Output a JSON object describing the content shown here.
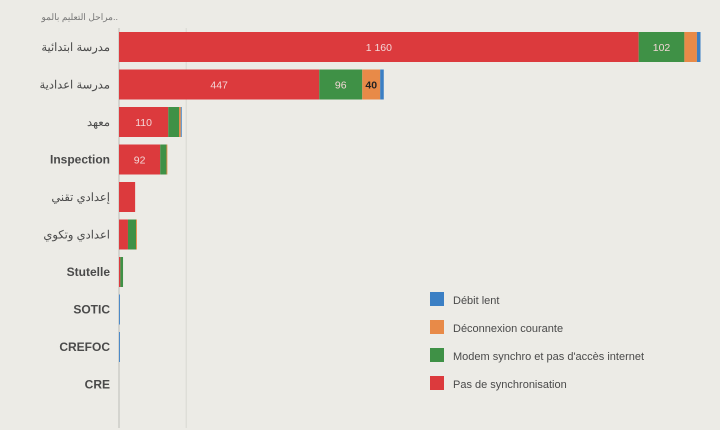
{
  "chart_data": {
    "type": "bar",
    "orientation": "horizontal",
    "stacked": true,
    "title": "مراحل التعليم بالمو..",
    "categories": [
      "مدرسة ابتدائية",
      "مدرسة اعدادية",
      "معهد",
      "Inspection",
      "إعدادي تقني",
      "اعدادي وتكوي",
      "Stutelle",
      "SOTIC",
      "CREFOC",
      "CRE"
    ],
    "series": [
      {
        "name": "Pas de synchronisation",
        "color": "#dc3a3d",
        "values": [
          1160,
          447,
          110,
          92,
          36,
          20,
          3,
          0,
          0,
          0
        ],
        "labels": [
          "1 160",
          "447",
          "110",
          "92",
          "",
          "",
          "",
          "",
          "",
          ""
        ]
      },
      {
        "name": "Modem synchro et pas d'accès internet",
        "color": "#3f9146",
        "values": [
          102,
          96,
          24,
          14,
          0,
          18,
          6,
          0,
          0,
          0
        ],
        "labels": [
          "102",
          "96",
          "",
          "",
          "",
          "",
          "",
          "",
          "",
          ""
        ]
      },
      {
        "name": "Déconnexion courante",
        "color": "#e88a48",
        "values": [
          28,
          40,
          4,
          2,
          0,
          2,
          0,
          0,
          0,
          0
        ],
        "labels": [
          "",
          "40",
          "",
          "",
          "",
          "",
          "",
          "",
          "",
          ""
        ]
      },
      {
        "name": "Débit lent",
        "color": "#3b7fc4",
        "values": [
          8,
          8,
          2,
          0,
          0,
          0,
          0,
          2,
          2,
          0
        ],
        "labels": [
          "",
          "",
          "",
          "",
          "",
          "",
          "",
          "",
          "",
          ""
        ]
      }
    ],
    "xlim": [
      0,
      1300
    ],
    "grid": true,
    "legend_position": "bottom-right",
    "legend_order": [
      "Débit lent",
      "Déconnexion courante",
      "Modem synchro et pas d'accès internet",
      "Pas de synchronisation"
    ]
  }
}
